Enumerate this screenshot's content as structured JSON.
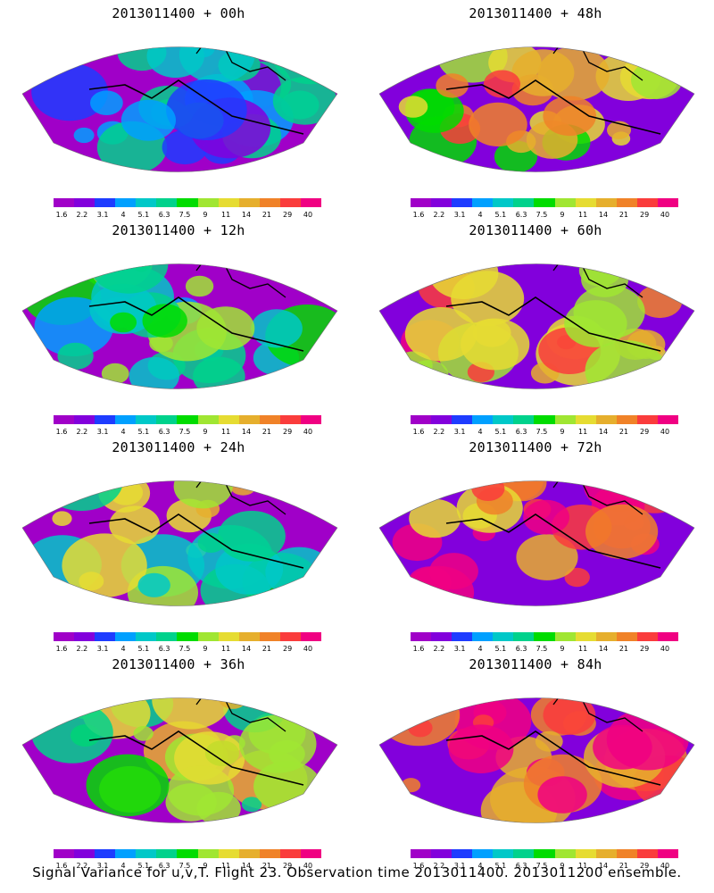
{
  "caption": "Signal Variance for u,v,T. Flight 23. Observation time 2013011400. 2013011200 ensemble.",
  "colorbar": {
    "levels": [
      "1.6",
      "2.2",
      "3.1",
      "4",
      "5.1",
      "6.3",
      "7.5",
      "9",
      "11",
      "14",
      "21",
      "29",
      "40"
    ],
    "colors": [
      "#a000c8",
      "#8200dc",
      "#1e3cff",
      "#00a0ff",
      "#00c8c8",
      "#00d28c",
      "#00dc00",
      "#a0e632",
      "#e6dc32",
      "#e6af2d",
      "#f08228",
      "#fa3c3c",
      "#f00082"
    ]
  },
  "chart_data": [
    {
      "type": "heatmap",
      "title": "2013011400 + 00h",
      "intensity": 0.15
    },
    {
      "type": "heatmap",
      "title": "2013011400 + 48h",
      "intensity": 0.55
    },
    {
      "type": "heatmap",
      "title": "2013011400 + 12h",
      "intensity": 0.25
    },
    {
      "type": "heatmap",
      "title": "2013011400 + 60h",
      "intensity": 0.62
    },
    {
      "type": "heatmap",
      "title": "2013011400 + 24h",
      "intensity": 0.35
    },
    {
      "type": "heatmap",
      "title": "2013011400 + 72h",
      "intensity": 0.72
    },
    {
      "type": "heatmap",
      "title": "2013011400 + 36h",
      "intensity": 0.45
    },
    {
      "type": "heatmap",
      "title": "2013011400 + 84h",
      "intensity": 0.8
    }
  ]
}
